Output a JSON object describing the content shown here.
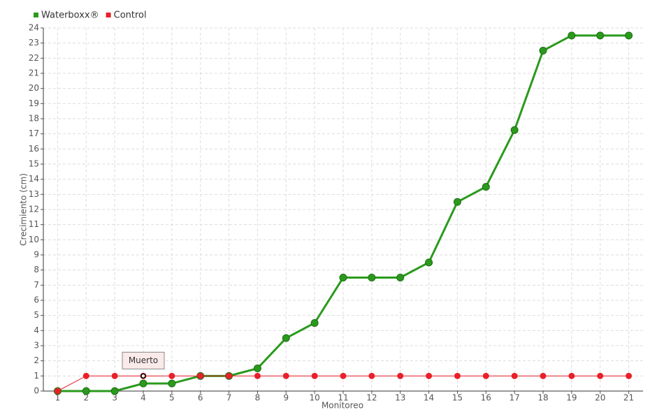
{
  "chart_data": {
    "type": "line",
    "x_label": "Monitoreo",
    "y_label": "Crecimiento (cm)",
    "categories": [
      "1",
      "2",
      "3",
      "4",
      "5",
      "6",
      "7",
      "8",
      "9",
      "10",
      "11",
      "12",
      "13",
      "14",
      "15",
      "16",
      "17",
      "18",
      "19",
      "20",
      "21"
    ],
    "series": [
      {
        "name": "Waterboxx®",
        "color": "#2a9a1c",
        "values": [
          0,
          0,
          0,
          0.5,
          0.5,
          1,
          1,
          1.5,
          3.5,
          4.5,
          7.5,
          7.5,
          7.5,
          8.5,
          12.5,
          13.5,
          17.25,
          22.5,
          23.5,
          23.5,
          23.5
        ]
      },
      {
        "name": "Control",
        "color": "#e8202a",
        "values": [
          0,
          1,
          1,
          1,
          1,
          1,
          1,
          1,
          1,
          1,
          1,
          1,
          1,
          1,
          1,
          1,
          1,
          1,
          1,
          1,
          1
        ]
      }
    ],
    "annotations": [
      {
        "text": "Muerto",
        "category": "4"
      }
    ],
    "ylim": [
      0,
      24
    ],
    "yticks": [
      0,
      1,
      2,
      3,
      4,
      5,
      6,
      7,
      8,
      9,
      10,
      11,
      12,
      13,
      14,
      15,
      16,
      17,
      18,
      19,
      20,
      21,
      22,
      23,
      24
    ],
    "grid": true,
    "legend": "top-left"
  }
}
